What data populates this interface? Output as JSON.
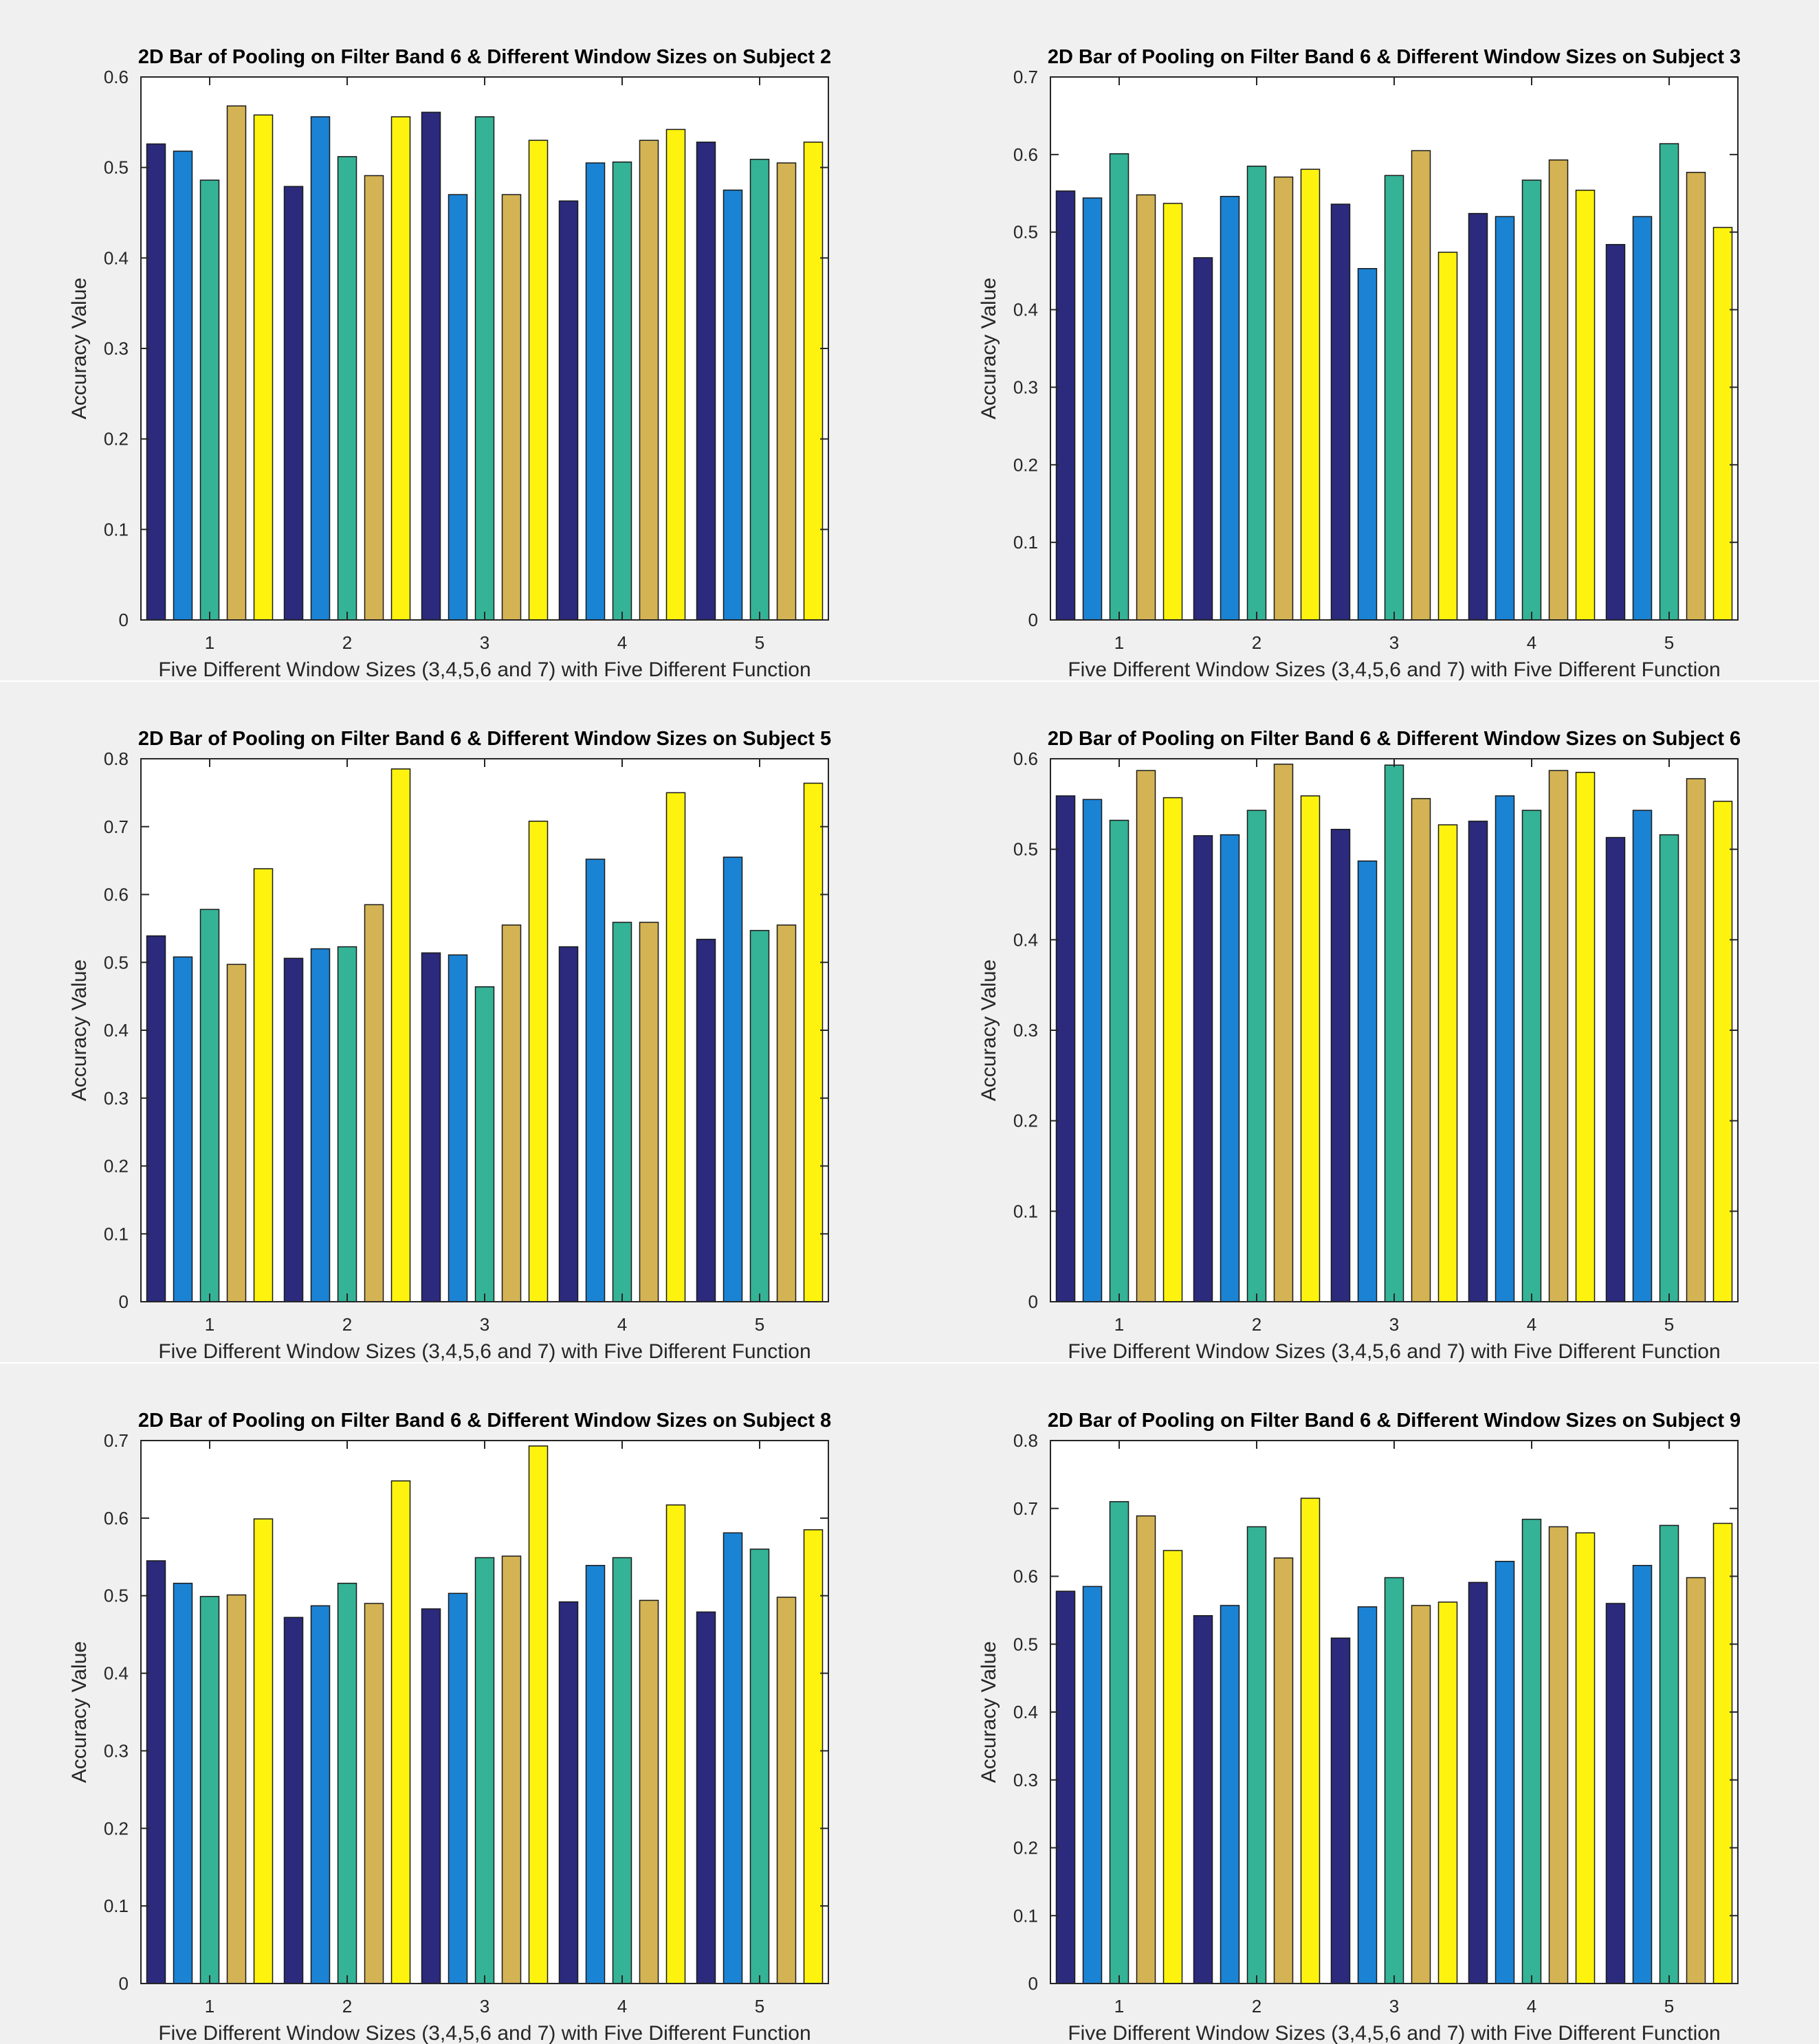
{
  "figure": {
    "panel_background": "#f0f0f0",
    "axes_background": "#ffffff",
    "series_colors": [
      "#2b2a7c",
      "#1b83d4",
      "#34b396",
      "#d4b354",
      "#fdf30f"
    ]
  },
  "chart_data": [
    {
      "type": "bar",
      "title": "2D Bar of Pooling on Filter Band 6 & Different Window Sizes on Subject 2",
      "xlabel": "Five Different Window Sizes (3,4,5,6 and 7) with Five Different Function",
      "ylabel": "Accuracy Value",
      "categories": [
        "1",
        "2",
        "3",
        "4",
        "5"
      ],
      "ylim": [
        0,
        0.6
      ],
      "yticks": [
        "0",
        "0.1",
        "0.2",
        "0.3",
        "0.4",
        "0.5",
        "0.6"
      ],
      "grid": false,
      "values": [
        [
          0.526,
          0.518,
          0.486,
          0.568,
          0.558
        ],
        [
          0.479,
          0.556,
          0.512,
          0.491,
          0.556
        ],
        [
          0.561,
          0.47,
          0.556,
          0.47,
          0.53
        ],
        [
          0.463,
          0.505,
          0.506,
          0.53,
          0.542
        ],
        [
          0.528,
          0.475,
          0.509,
          0.505,
          0.528
        ]
      ]
    },
    {
      "type": "bar",
      "title": "2D Bar of Pooling on Filter Band 6 & Different Window Sizes on Subject 3",
      "xlabel": "Five Different Window Sizes (3,4,5,6 and 7) with Five Different Function",
      "ylabel": "Accuracy Value",
      "categories": [
        "1",
        "2",
        "3",
        "4",
        "5"
      ],
      "ylim": [
        0,
        0.7
      ],
      "yticks": [
        "0",
        "0.1",
        "0.2",
        "0.3",
        "0.4",
        "0.5",
        "0.6",
        "0.7"
      ],
      "grid": false,
      "values": [
        [
          0.553,
          0.544,
          0.601,
          0.548,
          0.537
        ],
        [
          0.467,
          0.546,
          0.585,
          0.571,
          0.581
        ],
        [
          0.536,
          0.453,
          0.573,
          0.605,
          0.474
        ],
        [
          0.524,
          0.52,
          0.567,
          0.593,
          0.554
        ],
        [
          0.484,
          0.52,
          0.614,
          0.577,
          0.506
        ]
      ]
    },
    {
      "type": "bar",
      "title": "2D Bar of Pooling on Filter Band 6 & Different Window Sizes on Subject 5",
      "xlabel": "Five Different Window Sizes (3,4,5,6 and 7) with Five Different Function",
      "ylabel": "Accuracy Value",
      "categories": [
        "1",
        "2",
        "3",
        "4",
        "5"
      ],
      "ylim": [
        0,
        0.8
      ],
      "yticks": [
        "0",
        "0.1",
        "0.2",
        "0.3",
        "0.4",
        "0.5",
        "0.6",
        "0.7",
        "0.8"
      ],
      "grid": false,
      "values": [
        [
          0.539,
          0.508,
          0.578,
          0.497,
          0.638
        ],
        [
          0.506,
          0.52,
          0.523,
          0.585,
          0.785
        ],
        [
          0.514,
          0.511,
          0.464,
          0.555,
          0.708
        ],
        [
          0.523,
          0.652,
          0.559,
          0.559,
          0.75
        ],
        [
          0.534,
          0.655,
          0.547,
          0.555,
          0.764
        ]
      ]
    },
    {
      "type": "bar",
      "title": "2D Bar of Pooling on Filter Band 6 & Different Window Sizes on Subject 6",
      "xlabel": "Five Different Window Sizes (3,4,5,6 and 7) with Five Different Function",
      "ylabel": "Accuracy Value",
      "categories": [
        "1",
        "2",
        "3",
        "4",
        "5"
      ],
      "ylim": [
        0,
        0.6
      ],
      "yticks": [
        "0",
        "0.1",
        "0.2",
        "0.3",
        "0.4",
        "0.5",
        "0.6"
      ],
      "grid": false,
      "values": [
        [
          0.559,
          0.555,
          0.532,
          0.587,
          0.557
        ],
        [
          0.515,
          0.516,
          0.543,
          0.594,
          0.559
        ],
        [
          0.522,
          0.487,
          0.593,
          0.556,
          0.527
        ],
        [
          0.531,
          0.559,
          0.543,
          0.587,
          0.585
        ],
        [
          0.513,
          0.543,
          0.516,
          0.578,
          0.553
        ]
      ]
    },
    {
      "type": "bar",
      "title": "2D Bar of Pooling on Filter Band 6 & Different Window Sizes on Subject 8",
      "xlabel": "Five Different Window Sizes (3,4,5,6 and 7) with Five Different Function",
      "ylabel": "Accuracy Value",
      "categories": [
        "1",
        "2",
        "3",
        "4",
        "5"
      ],
      "ylim": [
        0,
        0.7
      ],
      "yticks": [
        "0",
        "0.1",
        "0.2",
        "0.3",
        "0.4",
        "0.5",
        "0.6",
        "0.7"
      ],
      "grid": false,
      "values": [
        [
          0.545,
          0.516,
          0.499,
          0.501,
          0.599
        ],
        [
          0.472,
          0.487,
          0.516,
          0.49,
          0.648
        ],
        [
          0.483,
          0.503,
          0.549,
          0.551,
          0.693
        ],
        [
          0.492,
          0.539,
          0.549,
          0.494,
          0.617
        ],
        [
          0.479,
          0.581,
          0.56,
          0.498,
          0.585
        ]
      ]
    },
    {
      "type": "bar",
      "title": "2D Bar of Pooling on Filter Band 6 & Different Window Sizes on Subject 9",
      "xlabel": "Five Different Window Sizes (3,4,5,6 and 7) with Five Different Function",
      "ylabel": "Accuracy Value",
      "categories": [
        "1",
        "2",
        "3",
        "4",
        "5"
      ],
      "ylim": [
        0,
        0.8
      ],
      "yticks": [
        "0",
        "0.1",
        "0.2",
        "0.3",
        "0.4",
        "0.5",
        "0.6",
        "0.7",
        "0.8"
      ],
      "grid": false,
      "values": [
        [
          0.578,
          0.585,
          0.71,
          0.689,
          0.638
        ],
        [
          0.542,
          0.557,
          0.673,
          0.627,
          0.715
        ],
        [
          0.509,
          0.555,
          0.598,
          0.557,
          0.562
        ],
        [
          0.591,
          0.622,
          0.684,
          0.673,
          0.664
        ],
        [
          0.56,
          0.616,
          0.675,
          0.598,
          0.678
        ]
      ]
    }
  ]
}
